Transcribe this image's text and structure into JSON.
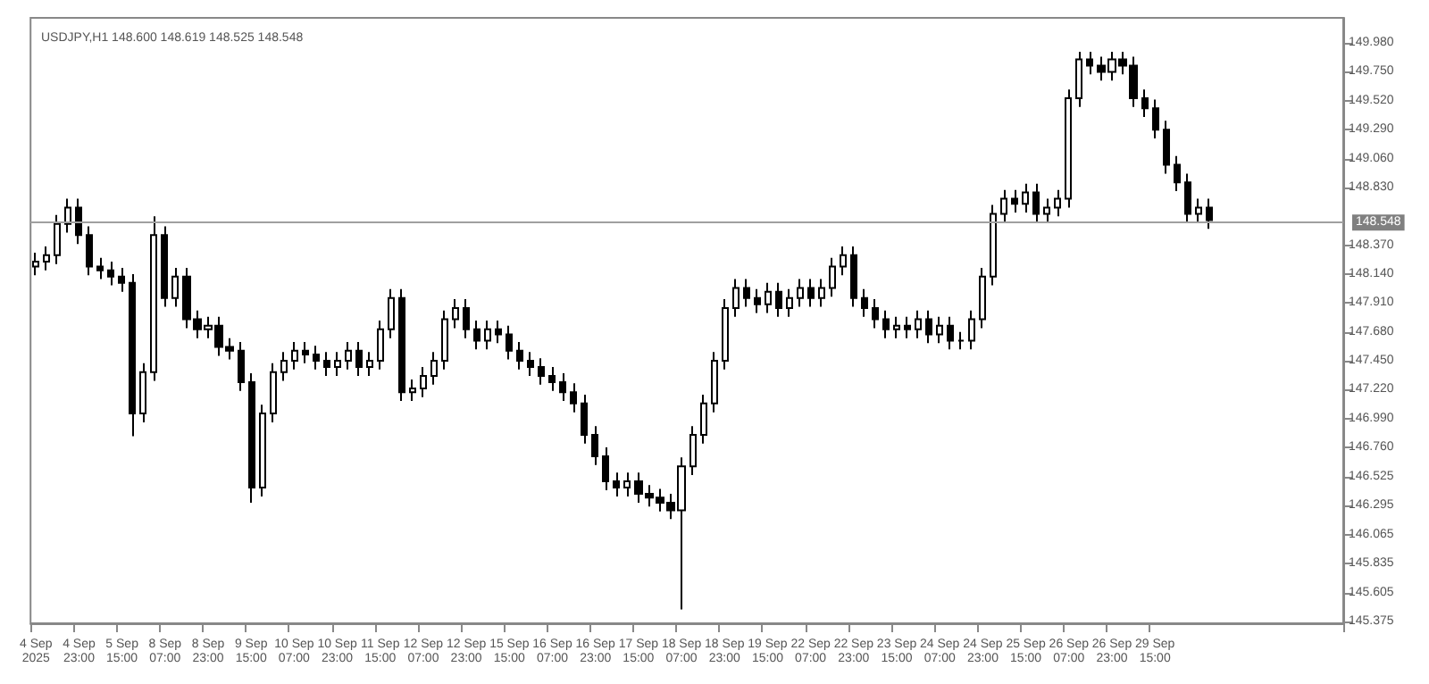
{
  "chart_data": {
    "type": "candlestick",
    "title": "USDJPY,H1 148.600 148.619 148.525 148.548",
    "color": "#000000",
    "categories": [
      "4 Sep 2025",
      null,
      null,
      null,
      "4 Sep 23:00",
      null,
      null,
      null,
      "5 Sep 15:00",
      null,
      null,
      null,
      "8 Sep 07:00",
      null,
      null,
      null,
      "8 Sep 23:00",
      null,
      null,
      null,
      "9 Sep 15:00",
      null,
      null,
      null,
      "10 Sep 07:00",
      null,
      null,
      null,
      "10 Sep 23:00",
      null,
      null,
      null,
      "11 Sep 15:00",
      null,
      null,
      null,
      "12 Sep 07:00",
      null,
      null,
      null,
      "12 Sep 23:00",
      null,
      null,
      null,
      "15 Sep 15:00",
      null,
      null,
      null,
      "16 Sep 07:00",
      null,
      null,
      null,
      "16 Sep 23:00",
      null,
      null,
      null,
      "17 Sep 15:00",
      null,
      null,
      null,
      "18 Sep 07:00",
      null,
      null,
      null,
      "18 Sep 23:00",
      null,
      null,
      null,
      "19 Sep 15:00",
      null,
      null,
      null,
      "22 Sep 07:00",
      null,
      null,
      null,
      "22 Sep 23:00",
      null,
      null,
      null,
      "23 Sep 15:00",
      null,
      null,
      null,
      "24 Sep 07:00",
      null,
      null,
      null,
      "24 Sep 23:00",
      null,
      null,
      null,
      "25 Sep 15:00",
      null,
      null,
      null,
      "26 Sep 07:00",
      null,
      null,
      null,
      "26 Sep 23:00",
      null,
      null,
      null,
      "29 Sep 15:00",
      null,
      null,
      null,
      null,
      null,
      null,
      null,
      null,
      null,
      null,
      null,
      null,
      null,
      null,
      null,
      null,
      null
    ],
    "ohlc": [
      [
        148.2,
        148.31,
        148.13,
        148.24
      ],
      [
        148.24,
        148.36,
        148.17,
        148.29
      ],
      [
        148.29,
        148.61,
        148.22,
        148.54
      ],
      [
        148.54,
        148.74,
        148.47,
        148.67
      ],
      [
        148.67,
        148.74,
        148.38,
        148.45
      ],
      [
        148.45,
        148.52,
        148.13,
        148.2
      ],
      [
        148.2,
        148.27,
        148.1,
        148.17
      ],
      [
        148.17,
        148.24,
        148.05,
        148.12
      ],
      [
        148.12,
        148.19,
        148.0,
        148.07
      ],
      [
        148.07,
        148.14,
        146.85,
        147.03
      ],
      [
        147.03,
        147.43,
        146.96,
        147.36
      ],
      [
        147.36,
        148.6,
        147.29,
        148.45
      ],
      [
        148.45,
        148.52,
        147.88,
        147.95
      ],
      [
        147.95,
        148.19,
        147.88,
        148.12
      ],
      [
        148.12,
        148.19,
        147.71,
        147.78
      ],
      [
        147.78,
        147.85,
        147.63,
        147.7
      ],
      [
        147.7,
        147.8,
        147.63,
        147.73
      ],
      [
        147.73,
        147.8,
        147.49,
        147.56
      ],
      [
        147.56,
        147.63,
        147.46,
        147.53
      ],
      [
        147.53,
        147.6,
        147.21,
        147.28
      ],
      [
        147.28,
        147.35,
        146.32,
        146.44
      ],
      [
        146.44,
        147.1,
        146.37,
        147.03
      ],
      [
        147.03,
        147.43,
        146.96,
        147.36
      ],
      [
        147.36,
        147.52,
        147.29,
        147.45
      ],
      [
        147.45,
        147.6,
        147.38,
        147.53
      ],
      [
        147.53,
        147.6,
        147.43,
        147.5
      ],
      [
        147.5,
        147.57,
        147.38,
        147.45
      ],
      [
        147.45,
        147.52,
        147.33,
        147.4
      ],
      [
        147.4,
        147.52,
        147.33,
        147.45
      ],
      [
        147.45,
        147.6,
        147.38,
        147.53
      ],
      [
        147.53,
        147.6,
        147.33,
        147.4
      ],
      [
        147.4,
        147.52,
        147.33,
        147.45
      ],
      [
        147.45,
        147.77,
        147.38,
        147.7
      ],
      [
        147.7,
        148.02,
        147.63,
        147.95
      ],
      [
        147.95,
        148.02,
        147.13,
        147.2
      ],
      [
        147.2,
        147.3,
        147.13,
        147.23
      ],
      [
        147.23,
        147.4,
        147.16,
        147.33
      ],
      [
        147.33,
        147.52,
        147.26,
        147.45
      ],
      [
        147.45,
        147.85,
        147.38,
        147.78
      ],
      [
        147.78,
        147.94,
        147.71,
        147.87
      ],
      [
        147.87,
        147.94,
        147.63,
        147.7
      ],
      [
        147.7,
        147.77,
        147.54,
        147.61
      ],
      [
        147.61,
        147.77,
        147.54,
        147.7
      ],
      [
        147.7,
        147.77,
        147.59,
        147.66
      ],
      [
        147.66,
        147.73,
        147.46,
        147.53
      ],
      [
        147.53,
        147.6,
        147.38,
        147.45
      ],
      [
        147.45,
        147.52,
        147.33,
        147.4
      ],
      [
        147.4,
        147.47,
        147.26,
        147.33
      ],
      [
        147.33,
        147.4,
        147.21,
        147.28
      ],
      [
        147.28,
        147.35,
        147.13,
        147.2
      ],
      [
        147.2,
        147.27,
        147.04,
        147.11
      ],
      [
        147.11,
        147.18,
        146.79,
        146.86
      ],
      [
        146.86,
        146.93,
        146.62,
        146.69
      ],
      [
        146.69,
        146.76,
        146.42,
        146.49
      ],
      [
        146.49,
        146.56,
        146.37,
        146.44
      ],
      [
        146.44,
        146.56,
        146.37,
        146.49
      ],
      [
        146.49,
        146.56,
        146.32,
        146.39
      ],
      [
        146.39,
        146.46,
        146.29,
        146.36
      ],
      [
        146.36,
        146.43,
        146.25,
        146.32
      ],
      [
        146.32,
        146.39,
        146.19,
        146.26
      ],
      [
        146.26,
        146.68,
        145.47,
        146.61
      ],
      [
        146.61,
        146.93,
        146.54,
        146.86
      ],
      [
        146.86,
        147.18,
        146.79,
        147.11
      ],
      [
        147.11,
        147.52,
        147.04,
        147.45
      ],
      [
        147.45,
        147.94,
        147.38,
        147.87
      ],
      [
        147.87,
        148.1,
        147.8,
        148.03
      ],
      [
        148.03,
        148.1,
        147.88,
        147.95
      ],
      [
        147.95,
        148.02,
        147.83,
        147.9
      ],
      [
        147.9,
        148.07,
        147.83,
        148.0
      ],
      [
        148.0,
        148.07,
        147.8,
        147.87
      ],
      [
        147.87,
        148.02,
        147.8,
        147.95
      ],
      [
        147.95,
        148.1,
        147.88,
        148.03
      ],
      [
        148.03,
        148.1,
        147.88,
        147.95
      ],
      [
        147.95,
        148.1,
        147.88,
        148.03
      ],
      [
        148.03,
        148.27,
        147.96,
        148.2
      ],
      [
        148.2,
        148.36,
        148.13,
        148.29
      ],
      [
        148.29,
        148.36,
        147.88,
        147.95
      ],
      [
        147.95,
        148.02,
        147.8,
        147.87
      ],
      [
        147.87,
        147.94,
        147.71,
        147.78
      ],
      [
        147.78,
        147.85,
        147.63,
        147.7
      ],
      [
        147.7,
        147.8,
        147.63,
        147.73
      ],
      [
        147.73,
        147.8,
        147.63,
        147.7
      ],
      [
        147.7,
        147.85,
        147.63,
        147.78
      ],
      [
        147.78,
        147.85,
        147.59,
        147.66
      ],
      [
        147.66,
        147.8,
        147.59,
        147.73
      ],
      [
        147.73,
        147.8,
        147.54,
        147.61
      ],
      [
        147.61,
        147.68,
        147.54,
        147.61
      ],
      [
        147.61,
        147.85,
        147.54,
        147.78
      ],
      [
        147.78,
        148.19,
        147.71,
        148.12
      ],
      [
        148.12,
        148.69,
        148.05,
        148.62
      ],
      [
        148.62,
        148.81,
        148.55,
        148.74
      ],
      [
        148.74,
        148.81,
        148.63,
        148.7
      ],
      [
        148.7,
        148.86,
        148.63,
        148.79
      ],
      [
        148.79,
        148.86,
        148.55,
        148.62
      ],
      [
        148.62,
        148.74,
        148.55,
        148.67
      ],
      [
        148.67,
        148.81,
        148.6,
        148.74
      ],
      [
        148.74,
        149.61,
        148.67,
        149.54
      ],
      [
        149.54,
        149.91,
        149.47,
        149.85
      ],
      [
        149.85,
        149.91,
        149.73,
        149.8
      ],
      [
        149.8,
        149.87,
        149.68,
        149.75
      ],
      [
        149.75,
        149.91,
        149.68,
        149.85
      ],
      [
        149.85,
        149.91,
        149.73,
        149.8
      ],
      [
        149.8,
        149.87,
        149.47,
        149.54
      ],
      [
        149.54,
        149.61,
        149.39,
        149.46
      ],
      [
        149.46,
        149.53,
        149.22,
        149.29
      ],
      [
        149.29,
        149.36,
        148.94,
        149.01
      ],
      [
        149.01,
        149.08,
        148.8,
        148.87
      ],
      [
        148.87,
        148.94,
        148.55,
        148.62
      ],
      [
        148.62,
        148.74,
        148.55,
        148.67
      ],
      [
        148.67,
        148.74,
        148.5,
        148.57
      ],
      null,
      null,
      null,
      null,
      null,
      null,
      null,
      null,
      null,
      null,
      null,
      null
    ],
    "ylim": [
      145.36,
      150.18
    ],
    "yticks": [
      {
        "value": 145.375,
        "label": "145.375"
      },
      {
        "value": 145.605,
        "label": "145.605"
      },
      {
        "value": 145.835,
        "label": "145.835"
      },
      {
        "value": 146.065,
        "label": "146.065"
      },
      {
        "value": 146.295,
        "label": "146.295"
      },
      {
        "value": 146.525,
        "label": "146.525"
      },
      {
        "value": 146.76,
        "label": "146.760"
      },
      {
        "value": 146.99,
        "label": "146.990"
      },
      {
        "value": 147.22,
        "label": "147.220"
      },
      {
        "value": 147.45,
        "label": "147.450"
      },
      {
        "value": 147.68,
        "label": "147.680"
      },
      {
        "value": 147.91,
        "label": "147.910"
      },
      {
        "value": 148.14,
        "label": "148.140"
      },
      {
        "value": 148.37,
        "label": "148.370"
      },
      {
        "value": 148.83,
        "label": "148.830"
      },
      {
        "value": 149.06,
        "label": "149.060"
      },
      {
        "value": 149.29,
        "label": "149.290"
      },
      {
        "value": 149.52,
        "label": "149.520"
      },
      {
        "value": 149.75,
        "label": "149.750"
      },
      {
        "value": 149.98,
        "label": "149.980"
      }
    ],
    "ref_lines": [
      {
        "axis": "y",
        "value": 148.548,
        "label": "148.548",
        "color": "#a0a0a0"
      }
    ],
    "grid": false
  }
}
